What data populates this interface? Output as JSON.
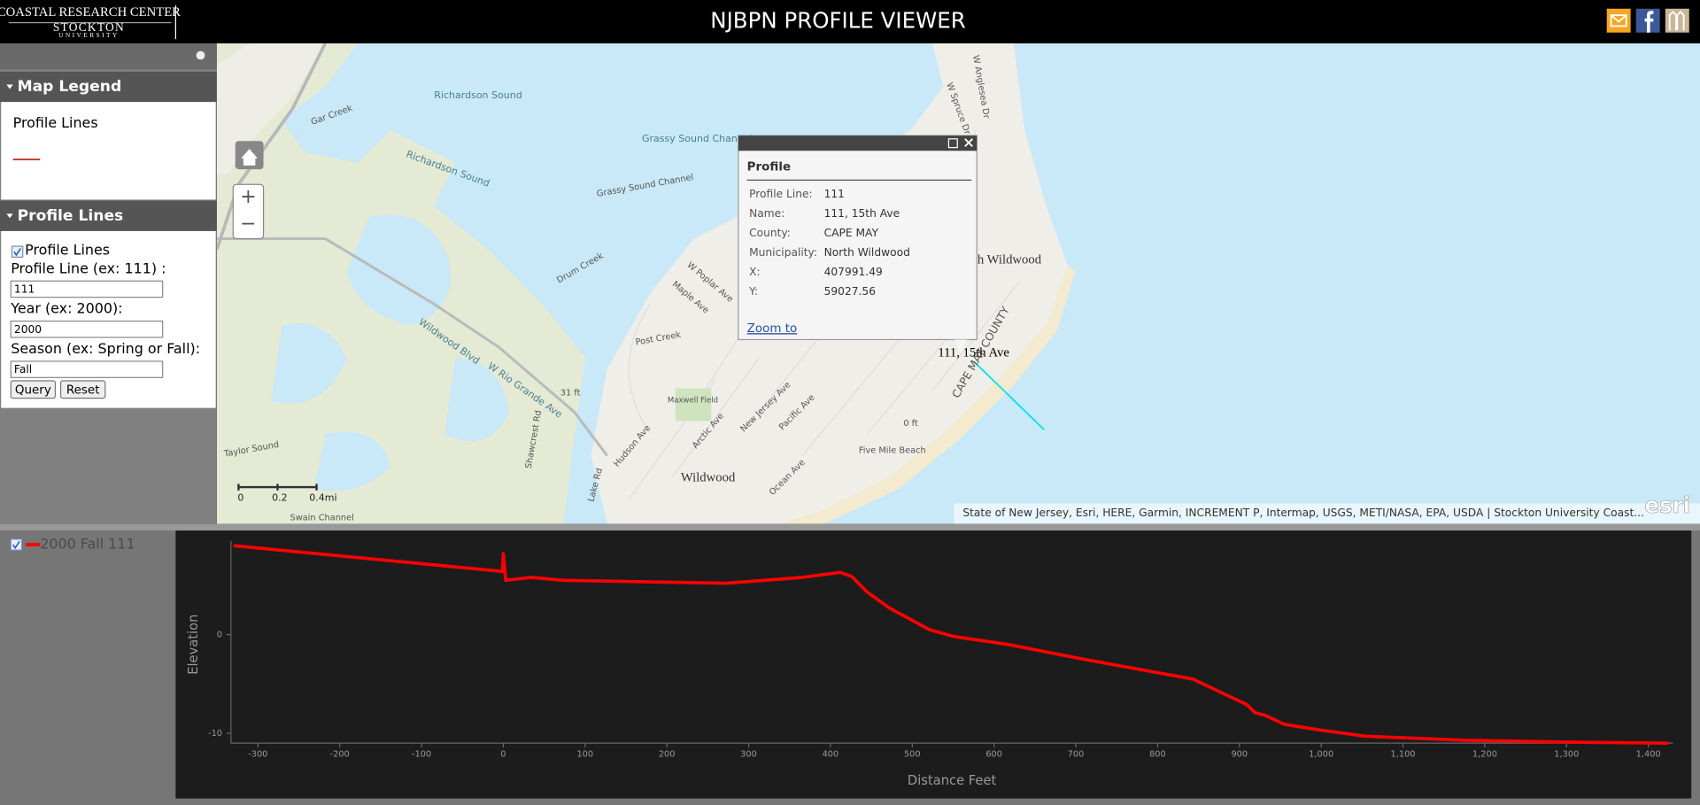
{
  "header": {
    "logo_line1": "COASTAL RESEARCH CENTER",
    "logo_line2": "STOCKTON",
    "logo_line3": "UNIVERSITY",
    "title": "NJBPN PROFILE VIEWER"
  },
  "sidebar": {
    "legend_title": "Map Legend",
    "legend_item": "Profile Lines",
    "query_title": "Profile Lines",
    "layer_checkbox": "Profile Lines",
    "fields": [
      {
        "label": "Profile Line (ex: 111) :",
        "value": "111"
      },
      {
        "label": "Year (ex: 2000):",
        "value": "2000"
      },
      {
        "label": "Season (ex: Spring or Fall):",
        "value": "Fall"
      }
    ],
    "buttons": [
      "Query",
      "Reset"
    ]
  },
  "map": {
    "labels": [
      "Richardson Sound",
      "Richardson Sound",
      "Grassy Sound Channel",
      "Grassy Sound Channel",
      "Gar Creek",
      "Drum Creek",
      "Post Creek",
      "Maxwell Field",
      "North Wildwood",
      "Wildwood",
      "Five Mile Beach",
      "CAPE MAY COUNTY",
      "W Rio Grande Ave",
      "Wildwood Blvd",
      "W Poplar Ave",
      "Maple Ave",
      "New Jersey Ave",
      "Pacific Ave",
      "Ocean Ave",
      "Hudson Ave",
      "Shawcrest Rd",
      "Lake Rd",
      "Taylor Sound",
      "Swain Channel",
      "W Spruce Dr",
      "W Anglesea Dr",
      "Arctic Ave",
      "0 ft",
      "31 ft"
    ],
    "scale_labels": [
      "0",
      "0.2",
      "0.4mi"
    ],
    "profile_label": "111, 15th Ave",
    "attribution": "State of New Jersey, Esri, HERE, Garmin, INCREMENT P, Intermap, USGS, METI/NASA, EPA, USDA | Stockton University Coast...",
    "esri": "esri",
    "popup": {
      "title": "Profile",
      "rows": [
        [
          "Profile Line:",
          "111"
        ],
        [
          "Name:",
          "111, 15th Ave"
        ],
        [
          "County:",
          "CAPE MAY"
        ],
        [
          "Municipality:",
          "North Wildwood"
        ],
        [
          "X:",
          "407991.49"
        ],
        [
          "Y:",
          "59027.56"
        ]
      ],
      "link": "Zoom to"
    }
  },
  "chart_data": {
    "type": "line",
    "x_label": "Distance Feet",
    "y_label": "Elevation",
    "x": [
      -330,
      -1,
      0,
      3,
      34,
      74,
      273,
      366,
      412,
      426,
      445,
      472,
      521,
      551,
      617,
      710,
      843,
      909,
      919,
      932,
      955,
      1001,
      1054,
      1174,
      1306,
      1425
    ],
    "series": [
      {
        "name": "2000 Fall 111",
        "color": "#ff0000",
        "values": [
          9.0,
          6.4,
          8.2,
          5.5,
          5.8,
          5.5,
          5.2,
          5.8,
          6.3,
          5.9,
          4.3,
          2.7,
          0.5,
          -0.2,
          -1.0,
          -2.5,
          -4.5,
          -7.1,
          -7.9,
          -8.2,
          -9.1,
          -9.7,
          -10.3,
          -10.7,
          -10.9,
          -11.0
        ]
      }
    ],
    "xlim": [
      -333,
      1430
    ],
    "ylim": [
      -11,
      9.5
    ],
    "xticks": [
      -300,
      -200,
      -100,
      0,
      100,
      200,
      300,
      400,
      500,
      600,
      700,
      800,
      900,
      {
        "value": 1000,
        "label": "1,000"
      },
      {
        "value": 1100,
        "label": "1,100"
      },
      {
        "value": 1200,
        "label": "1,200"
      },
      {
        "value": 1300,
        "label": "1,300"
      },
      {
        "value": 1400,
        "label": "1,400"
      }
    ],
    "yticks": [
      0,
      -10
    ]
  }
}
